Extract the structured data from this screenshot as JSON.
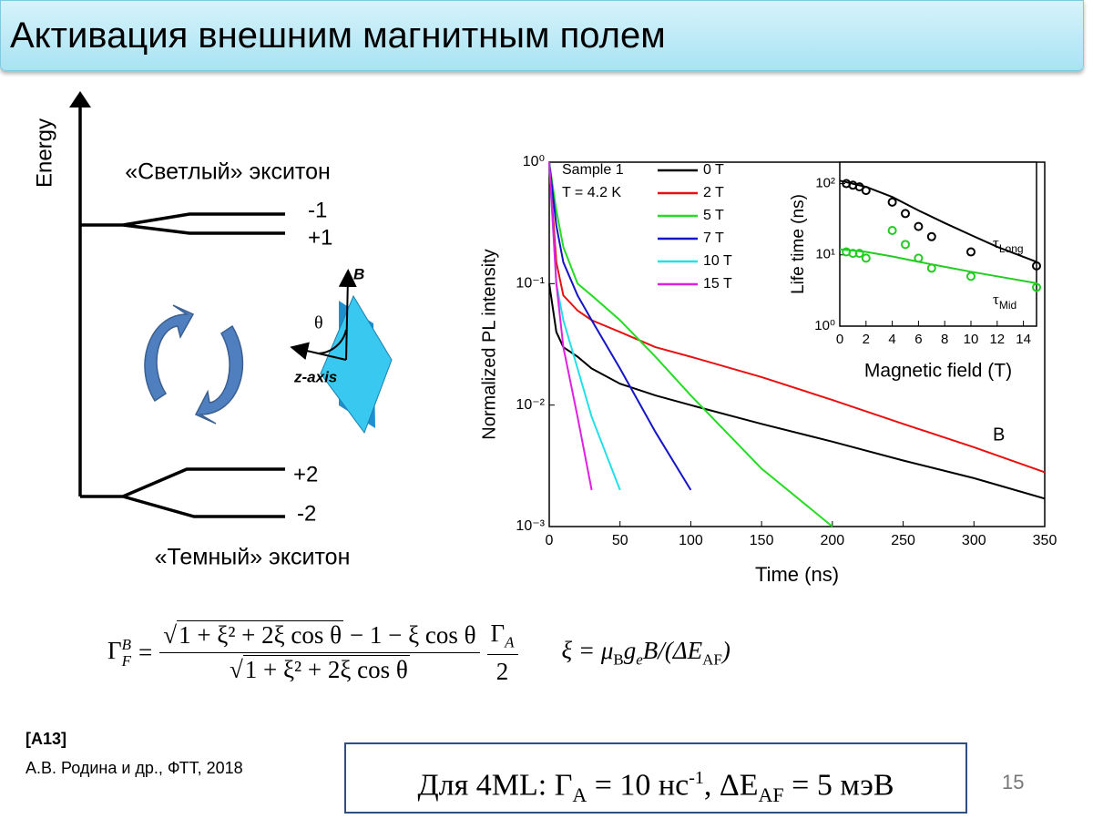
{
  "title": "Активация внешним магнитным полем",
  "energy_diagram": {
    "axis_label": "Energy",
    "bright_label": "«Светлый» экситон",
    "bright_levels": [
      "-1",
      "+1"
    ],
    "dark_levels": [
      "+2",
      "-2"
    ],
    "dark_label": "«Темный» экситон",
    "field_label": "B",
    "angle_label": "θ",
    "axis_name": "z-axis"
  },
  "chart_data": [
    {
      "type": "line",
      "xlabel": "Time (ns)",
      "ylabel": "Normalized PL intensity",
      "annotations": [
        "Sample 1",
        "T = 4.2 K",
        "B"
      ],
      "x": [
        0,
        5,
        10,
        20,
        30,
        50,
        75,
        100,
        150,
        200,
        250,
        300,
        350
      ],
      "series": [
        {
          "name": "0 T",
          "color": "#000000",
          "values": [
            0.1,
            0.04,
            0.03,
            0.025,
            0.02,
            0.015,
            0.012,
            0.01,
            0.007,
            0.005,
            0.0035,
            0.0025,
            0.0017
          ]
        },
        {
          "name": "2 T",
          "color": "#e81010",
          "values": [
            1,
            0.15,
            0.08,
            0.06,
            0.05,
            0.04,
            0.03,
            0.025,
            0.017,
            0.011,
            0.007,
            0.0045,
            0.0028
          ]
        },
        {
          "name": "5 T",
          "color": "#22dd22",
          "values": [
            1,
            0.4,
            0.2,
            0.1,
            0.08,
            0.05,
            0.025,
            0.012,
            0.003,
            0.001,
            null,
            null,
            null
          ]
        },
        {
          "name": "7 T",
          "color": "#1414c8",
          "values": [
            1,
            0.3,
            0.15,
            0.08,
            0.05,
            0.02,
            0.006,
            0.002,
            null,
            null,
            null,
            null,
            null
          ]
        },
        {
          "name": "10 T",
          "color": "#20e0e8",
          "values": [
            1,
            0.1,
            0.05,
            0.02,
            0.008,
            0.002,
            null,
            null,
            null,
            null,
            null,
            null,
            null
          ]
        },
        {
          "name": "15 T",
          "color": "#e020e0",
          "values": [
            1,
            0.1,
            0.03,
            0.008,
            0.002,
            null,
            null,
            null,
            null,
            null,
            null,
            null,
            null
          ]
        }
      ],
      "xlim": [
        0,
        350
      ],
      "xticks": [
        0,
        50,
        100,
        150,
        200,
        250,
        300,
        350
      ],
      "ylim": [
        0.001,
        1
      ],
      "log_y": true,
      "yticks": [
        {
          "value": 0.001,
          "label": "10⁻³"
        },
        {
          "value": 0.01,
          "label": "10⁻²"
        },
        {
          "value": 0.1,
          "label": "10⁻¹"
        },
        {
          "value": 1,
          "label": "10⁰"
        }
      ],
      "legend": "top"
    },
    {
      "type": "scatter",
      "xlabel": "Magnetic field (T)",
      "ylabel": "Life time (ns)",
      "series": [
        {
          "label": "τ",
          "label_sub": "Long",
          "color": "#000000",
          "x": [
            0.5,
            1,
            1.5,
            2,
            4,
            5,
            6,
            7,
            10,
            15
          ],
          "values": [
            100,
            95,
            90,
            80,
            55,
            38,
            25,
            18,
            11,
            7
          ],
          "fit_x": [
            0,
            2,
            4,
            6,
            8,
            10,
            12,
            15
          ],
          "fit_values": [
            110,
            90,
            65,
            42,
            28,
            19,
            13,
            8
          ]
        },
        {
          "label": "τ",
          "label_sub": "Mid",
          "color": "#22cc22",
          "x": [
            0.5,
            1,
            1.5,
            2,
            4,
            5,
            6,
            7,
            10,
            15
          ],
          "values": [
            11,
            10.5,
            10.5,
            9,
            22,
            14,
            9,
            6.5,
            5,
            3.5
          ],
          "fit_x": [
            0,
            2,
            4,
            6,
            8,
            10,
            12,
            15
          ],
          "fit_values": [
            12,
            11,
            9.5,
            8,
            6.8,
            5.8,
            5,
            4
          ]
        }
      ],
      "xlim": [
        0,
        15
      ],
      "xticks": [
        0,
        2,
        4,
        6,
        8,
        10,
        12,
        14
      ],
      "ylim": [
        1,
        200
      ],
      "log_y": true,
      "yticks": [
        {
          "value": 1,
          "label": "10⁰"
        },
        {
          "value": 10,
          "label": "10¹"
        },
        {
          "value": 100,
          "label": "10²"
        }
      ]
    }
  ],
  "formula": {
    "lhs": "Γ",
    "lhs_sup": "B",
    "lhs_sub": "F",
    "eq": "=",
    "num_root": "1 + ξ² + 2ξ cos θ",
    "num_rest": " − 1 − ξ cos θ",
    "den_root": "1 + ξ² + 2ξ cos θ",
    "factor_num": "Γ",
    "factor_num_sub": "A",
    "factor_den": "2",
    "xi": "ξ = μ",
    "xi_sub1": "B",
    "xi_g": "g",
    "xi_sub2": "e",
    "xi_rest": "B/(ΔE",
    "xi_sub3": "AF",
    "xi_end": ")"
  },
  "reference": {
    "tag": "[A13]",
    "text": "А.В. Родина и др., ФТТ, 2018"
  },
  "parameters": {
    "prefix": "Для 4ML: Γ",
    "sub1": "A",
    "mid1": " = 10 нс",
    "sup": "-1",
    "mid2": ", ΔE",
    "sub2": "AF",
    "end": " = 5 мэВ"
  },
  "page_number": "15"
}
